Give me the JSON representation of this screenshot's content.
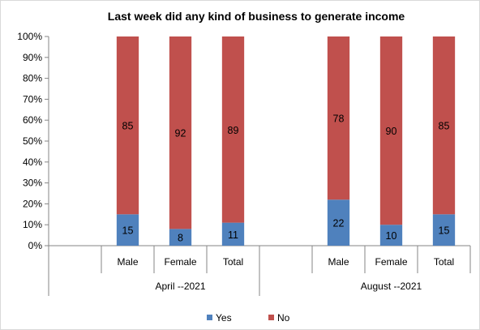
{
  "chart_data": {
    "type": "bar",
    "stacked": true,
    "percent_stacked": true,
    "title": "Last week did any kind of business to generate income",
    "groups": [
      {
        "label": "April --2021",
        "categories": [
          "Male",
          "Female",
          "Total"
        ]
      },
      {
        "label": "August --2021",
        "categories": [
          "Male",
          "Female",
          "Total"
        ]
      }
    ],
    "categories": [
      "Male",
      "Female",
      "Total",
      "Male",
      "Female",
      "Total"
    ],
    "series": [
      {
        "name": "Yes",
        "color": "#4f81bd",
        "values": [
          15,
          8,
          11,
          22,
          10,
          15
        ]
      },
      {
        "name": "No",
        "color": "#c0504d",
        "values": [
          85,
          92,
          89,
          78,
          90,
          85
        ]
      }
    ],
    "ylim": [
      0,
      100
    ],
    "yticks": [
      "0%",
      "10%",
      "20%",
      "30%",
      "40%",
      "50%",
      "60%",
      "70%",
      "80%",
      "90%",
      "100%"
    ],
    "legend_position": "bottom",
    "grid": false
  }
}
